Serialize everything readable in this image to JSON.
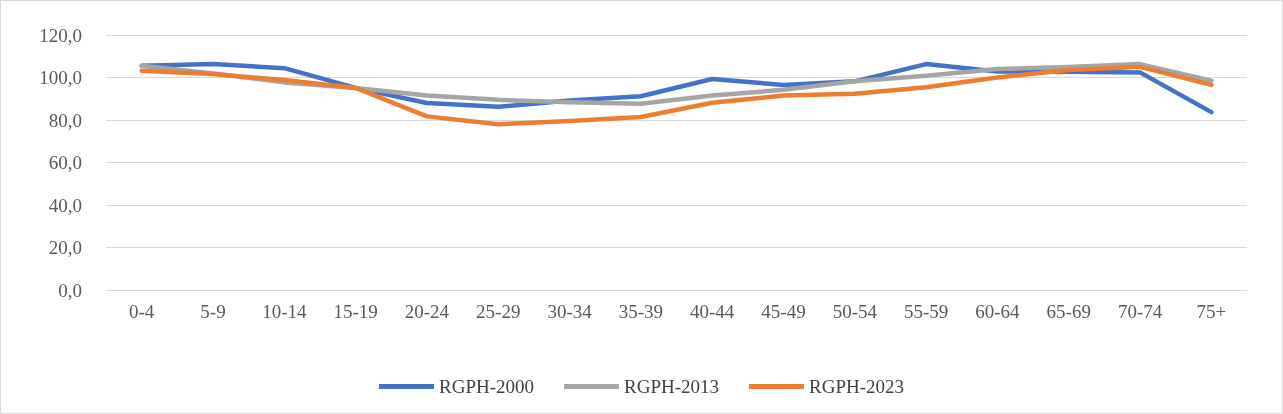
{
  "chart_data": {
    "type": "line",
    "categories": [
      "0-4",
      "5-9",
      "10-14",
      "15-19",
      "20-24",
      "25-29",
      "30-34",
      "35-39",
      "40-44",
      "45-49",
      "50-54",
      "55-59",
      "60-64",
      "65-69",
      "70-74",
      "75+"
    ],
    "series": [
      {
        "name": "RGPH-2000",
        "color": "#4472c4",
        "values": [
          105.5,
          106.3,
          104.4,
          95.1,
          88.0,
          86.2,
          89.2,
          91.2,
          99.3,
          96.5,
          98.2,
          106.3,
          102.8,
          102.7,
          102.4,
          83.7
        ]
      },
      {
        "name": "RGPH-2013",
        "color": "#a5a5a5",
        "values": [
          105.5,
          101.9,
          97.7,
          95.1,
          91.5,
          89.5,
          88.4,
          87.6,
          91.5,
          94.2,
          98.2,
          100.8,
          104.0,
          105.0,
          106.3,
          98.5
        ]
      },
      {
        "name": "RGPH-2023",
        "color": "#ed7d31",
        "values": [
          103.2,
          101.6,
          98.8,
          95.1,
          81.7,
          78.0,
          79.5,
          81.4,
          88.1,
          91.5,
          92.3,
          95.4,
          100.0,
          103.5,
          105.0,
          96.5
        ]
      }
    ],
    "ylim": [
      0,
      120
    ],
    "yticks": [
      {
        "value": 0,
        "label": "0,0"
      },
      {
        "value": 20,
        "label": "20,0"
      },
      {
        "value": 40,
        "label": "40,0"
      },
      {
        "value": 60,
        "label": "60,0"
      },
      {
        "value": 80,
        "label": "80,0"
      },
      {
        "value": 100,
        "label": "100,0"
      },
      {
        "value": 120,
        "label": "120,0"
      }
    ],
    "grid": "y",
    "legend": "bottom",
    "marker": "none",
    "line_style": "solid"
  }
}
